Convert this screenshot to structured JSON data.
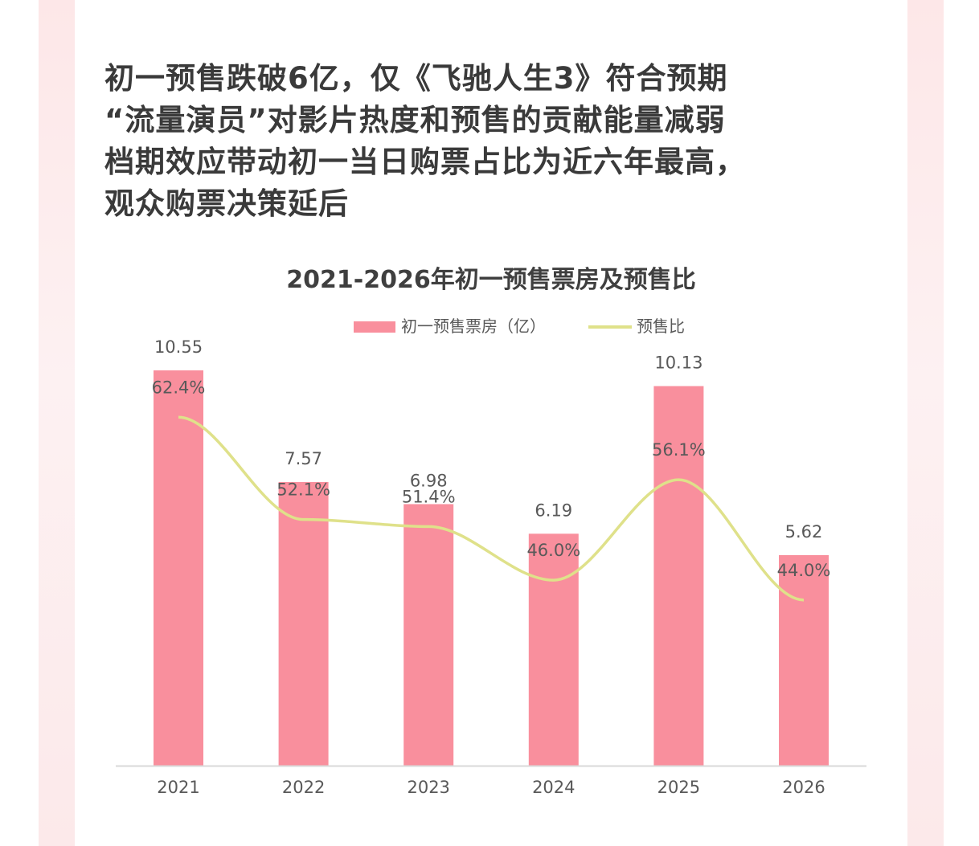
{
  "heading": {
    "lines": [
      "初一预售跌破6亿，仅《飞驰人生3》符合预期",
      "“流量演员”对影片热度和预售的贡献能量减弱",
      "档期效应带动初一当日购票占比为近六年最高，",
      "观众购票决策延后"
    ]
  },
  "colors": {
    "bar": "#f98f9d",
    "line": "#dfe18a",
    "axis": "#d9d9d9",
    "side_strip": "#fdeced"
  },
  "chart_data": {
    "type": "bar",
    "title": "2021-2026年初一预售票房及预售比",
    "categories": [
      "2021",
      "2022",
      "2023",
      "2024",
      "2025",
      "2026"
    ],
    "series": [
      {
        "name": "初一预售票房（亿）",
        "type": "bar",
        "values": [
          10.55,
          7.57,
          6.98,
          6.19,
          10.13,
          5.62
        ],
        "labels": [
          "10.55",
          "7.57",
          "6.98",
          "6.19",
          "10.13",
          "5.62"
        ]
      },
      {
        "name": "预售比",
        "type": "line",
        "smooth": true,
        "values": [
          62.4,
          52.1,
          51.4,
          46.0,
          56.1,
          44.0
        ],
        "labels": [
          "62.4%",
          "52.1%",
          "51.4%",
          "46.0%",
          "56.1%",
          "44.0%"
        ]
      }
    ],
    "legend_position": "top-center",
    "grid": false,
    "ylim": [
      0,
      11
    ],
    "y2lim": [
      30,
      68
    ]
  }
}
